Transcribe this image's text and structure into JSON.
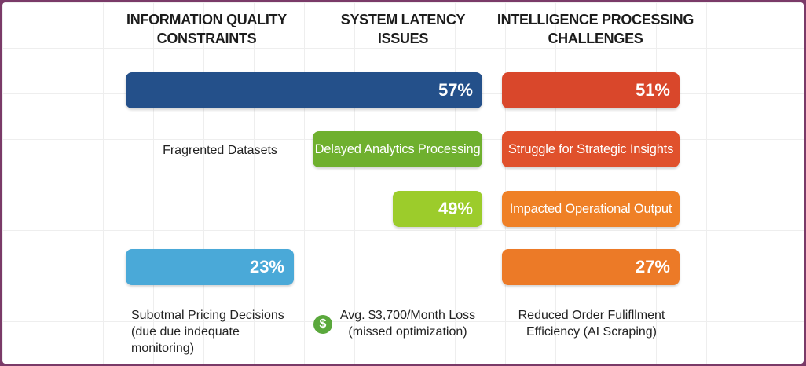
{
  "colors": {
    "navy": "#24508a",
    "red": "#d9472b",
    "green": "#6fb02e",
    "lime": "#9ccc2b",
    "orange": "#ec7a27",
    "sky": "#4aa9d8",
    "frame": "#7a3a68"
  },
  "headers": [
    [
      "INFORMATION QUALITY",
      "CONSTRAINTS"
    ],
    [
      "SYSTEM LATENCY",
      "ISSUES"
    ],
    [
      "INTELLIGENCE PROCESSING",
      "CHALLENGES"
    ]
  ],
  "chart_data": {
    "type": "bar",
    "bars": [
      {
        "value": 57,
        "label": "57%"
      },
      {
        "value": 51,
        "label": "51%"
      },
      {
        "value": 49,
        "label": "49%"
      },
      {
        "value": 23,
        "label": "23%"
      },
      {
        "value": 27,
        "label": "27%"
      }
    ],
    "pills": [
      "Delayed Analytics Processing",
      "Struggle for Strategic Insights",
      "Impacted Operational Output"
    ],
    "annotations": {
      "fragmented": "Fragrented Datasets",
      "pricing": [
        "Subotmal Pricing Decisions",
        "(due due indequate",
        "monitoring)"
      ],
      "loss": [
        "Avg. $3,700/Month Loss",
        "(missed optimization)"
      ],
      "fulfillment": [
        "Reduced Order Fulifllment",
        "Efficiency (AI Scraping)"
      ]
    },
    "dollar_icon": "$"
  }
}
